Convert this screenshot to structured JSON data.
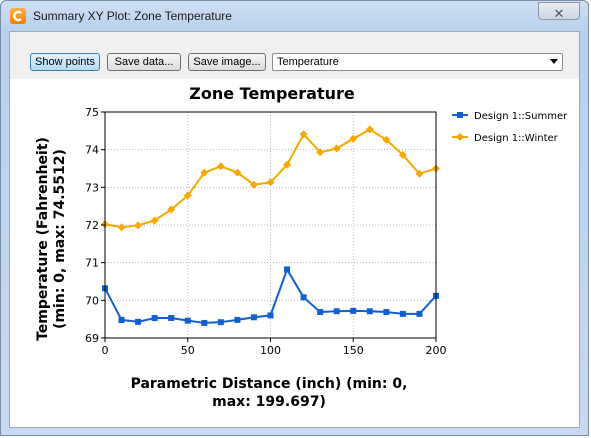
{
  "window": {
    "title": "Summary XY Plot: Zone Temperature",
    "close_glyph": "✕"
  },
  "toolbar": {
    "show_points_label": "Show points",
    "save_data_label": "Save data...",
    "save_image_label": "Save image...",
    "variable_select": {
      "value": "Temperature"
    }
  },
  "colors": {
    "summer": "#1060d0",
    "winter": "#f5a800",
    "grid": "#b8b8b8"
  },
  "chart_data": {
    "type": "line",
    "title": "Zone Temperature",
    "xlabel": "Parametric Distance (inch) (min: 0, max: 199.697)",
    "ylabel": "Temperature (Fahrenheit) (min: 0, max: 74.5512)",
    "xlabel_lines": [
      "Parametric Distance (inch) (min: 0,",
      "max: 199.697)"
    ],
    "ylabel_lines": [
      "Temperature (Fahrenheit)",
      "(min: 0, max: 74.5512)"
    ],
    "xlim": [
      0,
      200
    ],
    "ylim": [
      69,
      75
    ],
    "xticks": [
      0,
      50,
      100,
      150,
      200
    ],
    "yticks": [
      69,
      70,
      71,
      72,
      73,
      74,
      75
    ],
    "grid": true,
    "legend_position": "right",
    "x": [
      0,
      10,
      20,
      30,
      40,
      50,
      60,
      70,
      80,
      90,
      100,
      110,
      120,
      130,
      140,
      150,
      160,
      170,
      180,
      190,
      200
    ],
    "series": [
      {
        "name": "Design 1::Summer",
        "marker": "square",
        "values": [
          70.32,
          69.48,
          69.43,
          69.53,
          69.53,
          69.46,
          69.4,
          69.42,
          69.48,
          69.55,
          69.6,
          70.82,
          70.08,
          69.69,
          69.71,
          69.72,
          69.71,
          69.69,
          69.64,
          69.64,
          70.12
        ]
      },
      {
        "name": "Design 1::Winter",
        "marker": "diamond",
        "values": [
          72.02,
          71.94,
          71.99,
          72.12,
          72.41,
          72.78,
          73.39,
          73.56,
          73.39,
          73.07,
          73.13,
          73.6,
          74.41,
          73.93,
          74.03,
          74.29,
          74.54,
          74.26,
          73.86,
          73.36,
          73.5
        ]
      }
    ]
  }
}
